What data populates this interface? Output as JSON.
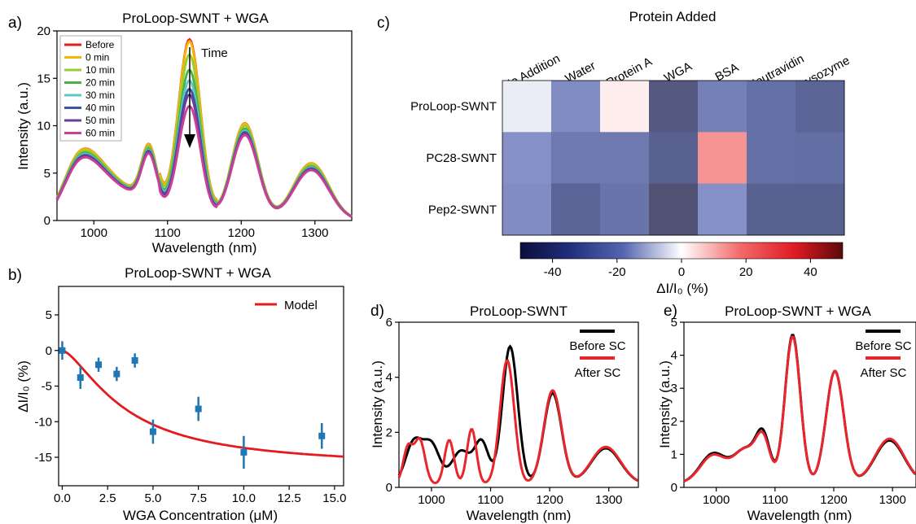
{
  "chart_data": [
    {
      "panel": "a)",
      "type": "line",
      "title": "ProLoop-SWNT + WGA",
      "xlabel": "Wavelength (nm)",
      "ylabel": "Intensity (a.u.)",
      "xlim": [
        950,
        1350
      ],
      "ylim": [
        0,
        20
      ],
      "xticks": [
        1000,
        1100,
        1200,
        1300
      ],
      "yticks": [
        0,
        5,
        10,
        15,
        20
      ],
      "annotation": "Time",
      "legend_position": "top-left",
      "base_peaks": [
        [
          975,
          3.5,
          20
        ],
        [
          1000,
          3.8,
          25
        ],
        [
          1075,
          5.2,
          10
        ],
        [
          1130,
          14.5,
          15
        ],
        [
          1205,
          9.5,
          18
        ],
        [
          1295,
          5.6,
          24
        ],
        [
          1050,
          2.7,
          40
        ]
      ],
      "series": [
        {
          "name": "Before",
          "color": "#e41a1c",
          "peak_1128": 19.0
        },
        {
          "name": "0 min",
          "color": "#f2b705",
          "peak_1128": 18.8
        },
        {
          "name": "10 min",
          "color": "#9acd32",
          "peak_1128": 17.4
        },
        {
          "name": "20 min",
          "color": "#4daf4a",
          "peak_1128": 15.8
        },
        {
          "name": "30 min",
          "color": "#5fc7c8",
          "peak_1128": 14.7
        },
        {
          "name": "40 min",
          "color": "#3a55a4",
          "peak_1128": 13.8
        },
        {
          "name": "50 min",
          "color": "#6a3d9a",
          "peak_1128": 13.2
        },
        {
          "name": "60 min",
          "color": "#c94096",
          "peak_1128": 12.0
        }
      ]
    },
    {
      "panel": "b)",
      "type": "scatter",
      "title": "ProLoop-SWNT + WGA",
      "xlabel": "WGA Concentration (μM)",
      "ylabel": "ΔI/I₀ (%)",
      "xlim": [
        -0.2,
        15.5
      ],
      "ylim": [
        -19,
        9
      ],
      "xticks": [
        0.0,
        2.5,
        5.0,
        7.5,
        10.0,
        12.5,
        15.0
      ],
      "xtick_labels": [
        "0.0",
        "2.5",
        "5.0",
        "7.5",
        "10.0",
        "12.5",
        "15.0"
      ],
      "yticks": [
        5,
        0,
        -5,
        -10,
        -15
      ],
      "points": [
        {
          "x": 0.0,
          "y": 0.0,
          "err": 1.3
        },
        {
          "x": 1.0,
          "y": -3.8,
          "err": 1.6
        },
        {
          "x": 2.0,
          "y": -2.0,
          "err": 1.0
        },
        {
          "x": 3.0,
          "y": -3.3,
          "err": 1.0
        },
        {
          "x": 4.0,
          "y": -1.4,
          "err": 1.0
        },
        {
          "x": 5.0,
          "y": -11.4,
          "err": 1.7
        },
        {
          "x": 7.5,
          "y": -8.2,
          "err": 1.7
        },
        {
          "x": 10.0,
          "y": -14.3,
          "err": 2.3
        },
        {
          "x": 14.3,
          "y": -12.0,
          "err": 1.8
        }
      ],
      "point_color": "#1f77b4",
      "model": {
        "name": "Model",
        "color": "#e41a1c",
        "dmax": -16.5,
        "kd": 3.5,
        "n": 1.5
      }
    },
    {
      "panel": "c)",
      "type": "heatmap",
      "title": "Protein Added",
      "columns": [
        "No Addition",
        "Water",
        "Protein A",
        "WGA",
        "BSA",
        "Neutravidin",
        "Lysozyme"
      ],
      "rows": [
        "ProLoop-SWNT",
        "PC28-SWNT",
        "Pep2-SWNT"
      ],
      "values": [
        [
          -3,
          -20,
          3,
          -45,
          -25,
          -32,
          -38
        ],
        [
          -18,
          -28,
          -28,
          -40,
          18,
          -32,
          -33
        ],
        [
          -20,
          -38,
          -30,
          -50,
          -18,
          -40,
          -40
        ]
      ],
      "colorbar": {
        "min": -50,
        "max": 50,
        "ticks": [
          -40,
          -20,
          0,
          20,
          40
        ],
        "label": "ΔI/I₀ (%)"
      }
    },
    {
      "panel": "d)",
      "type": "line",
      "title": "ProLoop-SWNT",
      "xlabel": "Wavelength (nm)",
      "ylabel": "Intensity (a.u.)",
      "xlim": [
        945,
        1350
      ],
      "ylim": [
        0,
        6
      ],
      "xticks": [
        1000,
        1100,
        1200,
        1300
      ],
      "yticks": [
        0,
        2,
        4,
        6
      ],
      "series": [
        {
          "name": "Before SC",
          "color": "#000000",
          "peaks": [
            [
              970,
              1.5,
              14
            ],
            [
              1000,
              1.4,
              14
            ],
            [
              1050,
              1.2,
              16
            ],
            [
              1085,
              1.5,
              12
            ],
            [
              1133,
              5.0,
              13
            ],
            [
              1205,
              3.3,
              15
            ],
            [
              1295,
              1.3,
              25
            ]
          ]
        },
        {
          "name": "After SC",
          "color": "#e8262b",
          "peaks": [
            [
              960,
              1.3,
              8
            ],
            [
              980,
              1.6,
              9
            ],
            [
              1030,
              1.6,
              8
            ],
            [
              1068,
              2.0,
              8
            ],
            [
              1128,
              4.5,
              12
            ],
            [
              1205,
              3.4,
              15
            ],
            [
              1295,
              1.35,
              25
            ]
          ]
        }
      ]
    },
    {
      "panel": "e)",
      "type": "line",
      "title": "ProLoop-SWNT + WGA",
      "xlabel": "Wavelength (nm)",
      "ylabel": "Intensity (a.u.)",
      "xlim": [
        945,
        1340
      ],
      "ylim": [
        0,
        5
      ],
      "xticks": [
        1000,
        1100,
        1200,
        1300
      ],
      "yticks": [
        0,
        1,
        2,
        3,
        4,
        5
      ],
      "series": [
        {
          "name": "Before SC",
          "color": "#000000",
          "peaks": [
            [
              995,
              0.9,
              22
            ],
            [
              1050,
              1.0,
              20
            ],
            [
              1080,
              1.3,
              12
            ],
            [
              1130,
              4.5,
              13
            ],
            [
              1202,
              3.4,
              15
            ],
            [
              1295,
              1.3,
              25
            ]
          ]
        },
        {
          "name": "After SC",
          "color": "#e8262b",
          "peaks": [
            [
              995,
              0.85,
              22
            ],
            [
              1050,
              1.0,
              20
            ],
            [
              1080,
              1.2,
              12
            ],
            [
              1130,
              4.45,
              13
            ],
            [
              1202,
              3.4,
              15
            ],
            [
              1295,
              1.35,
              25
            ]
          ]
        }
      ]
    }
  ]
}
